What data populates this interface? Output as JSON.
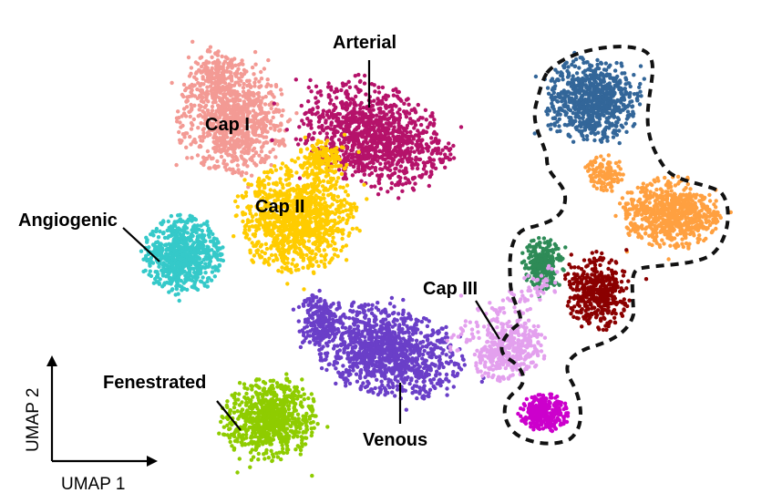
{
  "figure": {
    "axes": {
      "x_label": "UMAP 1",
      "y_label": "UMAP 2"
    },
    "clusters": [
      {
        "key": "cap1",
        "label": "Cap I",
        "color": "#f39a94"
      },
      {
        "key": "arterial",
        "label": "Arterial",
        "color": "#b5126a"
      },
      {
        "key": "cap2",
        "label": "Cap II",
        "color": "#ffcc00"
      },
      {
        "key": "angiogenic",
        "label": "Angiogenic",
        "color": "#35c9c9"
      },
      {
        "key": "venous",
        "label": "Venous",
        "color": "#6a3fc8"
      },
      {
        "key": "fenestrated",
        "label": "Fenestrated",
        "color": "#8fcc00"
      },
      {
        "key": "cap3",
        "label": "Cap III",
        "color": "#e3a0ee"
      },
      {
        "key": "unlabeled_blue",
        "label": "",
        "color": "#336699"
      },
      {
        "key": "unlabeled_orange",
        "label": "",
        "color": "#ffa040"
      },
      {
        "key": "unlabeled_green",
        "label": "",
        "color": "#2e8b57"
      },
      {
        "key": "unlabeled_darkred",
        "label": "",
        "color": "#8b0000"
      },
      {
        "key": "unlabeled_magenta",
        "label": "",
        "color": "#cc00cc"
      }
    ]
  }
}
